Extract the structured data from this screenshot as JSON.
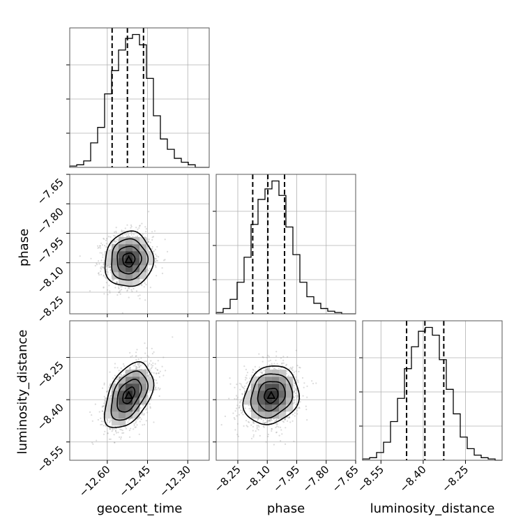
{
  "chart_data": {
    "type": "corner",
    "parameters": [
      "geocent_time",
      "phase",
      "luminosity_distance"
    ],
    "labels": {
      "geocent_time": "geocent_time",
      "phase": "phase",
      "luminosity_distance": "luminosity_distance"
    },
    "ranges": {
      "geocent_time": [
        -12.74,
        -12.22
      ],
      "phase": [
        -8.36,
        -7.65
      ],
      "luminosity_distance": [
        -8.615,
        -8.12
      ]
    },
    "ticks": {
      "geocent_time": [
        -12.6,
        -12.45,
        -12.3
      ],
      "phase": [
        -8.25,
        -8.1,
        -7.95,
        -7.8,
        -7.65
      ],
      "luminosity_distance": [
        -8.55,
        -8.4,
        -8.25
      ]
    },
    "tick_labels": {
      "geocent_time": [
        "−12.60",
        "−12.45",
        "−12.30"
      ],
      "phase": [
        "−8.25",
        "−8.10",
        "−7.95",
        "−7.80",
        "−7.65"
      ],
      "luminosity_distance": [
        "−8.55",
        "−8.40",
        "−8.25"
      ]
    },
    "quantiles": {
      "geocent_time": [
        -12.582,
        -12.525,
        -12.465
      ],
      "phase": [
        -8.174,
        -8.097,
        -8.012
      ],
      "luminosity_distance": [
        -8.459,
        -8.394,
        -8.327
      ]
    },
    "histograms": {
      "geocent_time": {
        "edges": [
          -12.74,
          -12.714,
          -12.688,
          -12.662,
          -12.636,
          -12.61,
          -12.584,
          -12.558,
          -12.532,
          -12.506,
          -12.48,
          -12.454,
          -12.428,
          -12.402,
          -12.376,
          -12.35,
          -12.324,
          -12.298,
          -12.272,
          -12.246,
          -12.22
        ],
        "counts": [
          1,
          2,
          5,
          19,
          31,
          57,
          75,
          91,
          100,
          103,
          95,
          69,
          40,
          22,
          14,
          7,
          4,
          2,
          0,
          0
        ]
      },
      "phase": {
        "edges": [
          -8.36,
          -8.3245,
          -8.289,
          -8.2535,
          -8.218,
          -8.1825,
          -8.147,
          -8.1115,
          -8.076,
          -8.0405,
          -8.005,
          -7.9695,
          -7.934,
          -7.8985,
          -7.863,
          -7.8275,
          -7.792,
          -7.7565,
          -7.721,
          -7.6855,
          -7.65
        ],
        "counts": [
          1,
          4,
          11,
          24,
          43,
          68,
          87,
          95,
          101,
          90,
          66,
          45,
          24,
          13,
          8,
          4,
          2,
          1,
          0,
          0
        ]
      },
      "luminosity_distance": {
        "edges": [
          -8.615,
          -8.59025,
          -8.5655,
          -8.54075,
          -8.516,
          -8.49125,
          -8.4665,
          -8.44175,
          -8.417,
          -8.39225,
          -8.3675,
          -8.34275,
          -8.318,
          -8.29325,
          -8.2685,
          -8.24375,
          -8.219,
          -8.19425,
          -8.1695,
          -8.14475,
          -8.12
        ],
        "counts": [
          1,
          2,
          6,
          14,
          30,
          48,
          71,
          88,
          100,
          103,
          97,
          78,
          55,
          36,
          18,
          9,
          4,
          2,
          1,
          0
        ]
      }
    },
    "joint": [
      {
        "x": "geocent_time",
        "y": "phase",
        "center": [
          -12.52,
          -8.085
        ],
        "std": [
          0.045,
          0.07
        ],
        "correlation": 0.05,
        "contour_levels_sigma": [
          0.5,
          1.0,
          1.5,
          2.0
        ]
      },
      {
        "x": "geocent_time",
        "y": "luminosity_distance",
        "center": [
          -12.52,
          -8.385
        ],
        "std": [
          0.045,
          0.058
        ],
        "correlation": 0.45,
        "contour_levels_sigma": [
          0.5,
          1.0,
          1.5,
          2.0
        ]
      },
      {
        "x": "phase",
        "y": "luminosity_distance",
        "center": [
          -8.08,
          -8.385
        ],
        "std": [
          0.07,
          0.052
        ],
        "correlation": 0.15,
        "contour_levels_sigma": [
          0.5,
          1.0,
          1.5,
          2.0
        ]
      }
    ],
    "grid": true,
    "colors": {
      "contour": "#000000",
      "scatter": "#999999",
      "grid": "#b0b0b0",
      "hist": "#000000"
    }
  }
}
